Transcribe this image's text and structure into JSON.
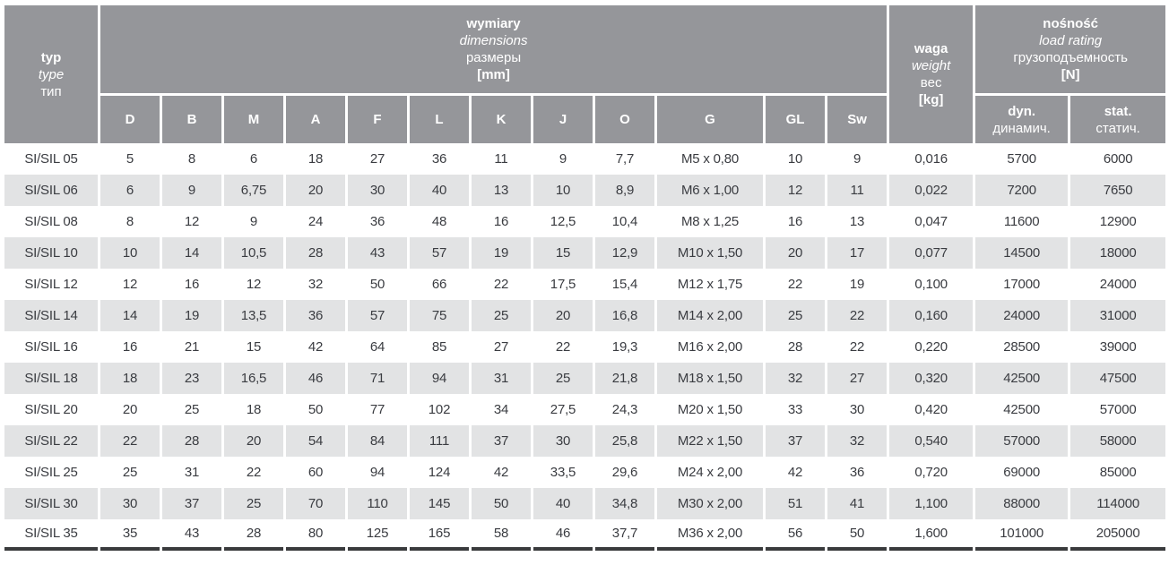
{
  "table": {
    "header": {
      "type_col": {
        "line1": "typ",
        "line2": "type",
        "line3": "тип"
      },
      "dimensions_group": {
        "line1": "wymiary",
        "line2": "dimensions",
        "line3": "размеры",
        "line4": "[mm]"
      },
      "dim_cols": [
        "D",
        "B",
        "M",
        "A",
        "F",
        "L",
        "K",
        "J",
        "O",
        "G",
        "GL",
        "Sw"
      ],
      "weight_col": {
        "line1": "waga",
        "line2": "weight",
        "line3": "вес",
        "line4": "[kg]"
      },
      "load_group": {
        "line1": "nośność",
        "line2": "load rating",
        "line3": "грузоподъемность",
        "line4": "[N]"
      },
      "load_cols": [
        {
          "line1": "dyn.",
          "line2": "динамич."
        },
        {
          "line1": "stat.",
          "line2": "статич."
        }
      ]
    },
    "rows": [
      {
        "type": "SI/SIL 05",
        "dims": [
          "5",
          "8",
          "6",
          "18",
          "27",
          "36",
          "11",
          "9",
          "7,7",
          "M5 x 0,80",
          "10",
          "9"
        ],
        "weight": "0,016",
        "dyn": "5700",
        "stat": "6000"
      },
      {
        "type": "SI/SIL 06",
        "dims": [
          "6",
          "9",
          "6,75",
          "20",
          "30",
          "40",
          "13",
          "10",
          "8,9",
          "M6 x 1,00",
          "12",
          "11"
        ],
        "weight": "0,022",
        "dyn": "7200",
        "stat": "7650"
      },
      {
        "type": "SI/SIL 08",
        "dims": [
          "8",
          "12",
          "9",
          "24",
          "36",
          "48",
          "16",
          "12,5",
          "10,4",
          "M8 x 1,25",
          "16",
          "13"
        ],
        "weight": "0,047",
        "dyn": "11600",
        "stat": "12900"
      },
      {
        "type": "SI/SIL 10",
        "dims": [
          "10",
          "14",
          "10,5",
          "28",
          "43",
          "57",
          "19",
          "15",
          "12,9",
          "M10 x 1,50",
          "20",
          "17"
        ],
        "weight": "0,077",
        "dyn": "14500",
        "stat": "18000"
      },
      {
        "type": "SI/SIL 12",
        "dims": [
          "12",
          "16",
          "12",
          "32",
          "50",
          "66",
          "22",
          "17,5",
          "15,4",
          "M12 x 1,75",
          "22",
          "19"
        ],
        "weight": "0,100",
        "dyn": "17000",
        "stat": "24000"
      },
      {
        "type": "SI/SIL 14",
        "dims": [
          "14",
          "19",
          "13,5",
          "36",
          "57",
          "75",
          "25",
          "20",
          "16,8",
          "M14 x 2,00",
          "25",
          "22"
        ],
        "weight": "0,160",
        "dyn": "24000",
        "stat": "31000"
      },
      {
        "type": "SI/SIL 16",
        "dims": [
          "16",
          "21",
          "15",
          "42",
          "64",
          "85",
          "27",
          "22",
          "19,3",
          "M16 x 2,00",
          "28",
          "22"
        ],
        "weight": "0,220",
        "dyn": "28500",
        "stat": "39000"
      },
      {
        "type": "SI/SIL 18",
        "dims": [
          "18",
          "23",
          "16,5",
          "46",
          "71",
          "94",
          "31",
          "25",
          "21,8",
          "M18 x 1,50",
          "32",
          "27"
        ],
        "weight": "0,320",
        "dyn": "42500",
        "stat": "47500"
      },
      {
        "type": "SI/SIL 20",
        "dims": [
          "20",
          "25",
          "18",
          "50",
          "77",
          "102",
          "34",
          "27,5",
          "24,3",
          "M20 x 1,50",
          "33",
          "30"
        ],
        "weight": "0,420",
        "dyn": "42500",
        "stat": "57000"
      },
      {
        "type": "SI/SIL 22",
        "dims": [
          "22",
          "28",
          "20",
          "54",
          "84",
          "111",
          "37",
          "30",
          "25,8",
          "M22 x 1,50",
          "37",
          "32"
        ],
        "weight": "0,540",
        "dyn": "57000",
        "stat": "58000"
      },
      {
        "type": "SI/SIL 25",
        "dims": [
          "25",
          "31",
          "22",
          "60",
          "94",
          "124",
          "42",
          "33,5",
          "29,6",
          "M24 x 2,00",
          "42",
          "36"
        ],
        "weight": "0,720",
        "dyn": "69000",
        "stat": "85000"
      },
      {
        "type": "SI/SIL 30",
        "dims": [
          "30",
          "37",
          "25",
          "70",
          "110",
          "145",
          "50",
          "40",
          "34,8",
          "M30 x 2,00",
          "51",
          "41"
        ],
        "weight": "1,100",
        "dyn": "88000",
        "stat": "114000"
      },
      {
        "type": "SI/SIL 35",
        "dims": [
          "35",
          "43",
          "28",
          "80",
          "125",
          "165",
          "58",
          "46",
          "37,7",
          "M36 x 2,00",
          "56",
          "50"
        ],
        "weight": "1,600",
        "dyn": "101000",
        "stat": "205000"
      }
    ]
  },
  "colors": {
    "header_bg": "#95969a",
    "row_alt_bg": "#e2e3e4",
    "data_text": "#3a3c41",
    "header_text": "#ffffff",
    "bottom_border": "#3a3b3d"
  }
}
